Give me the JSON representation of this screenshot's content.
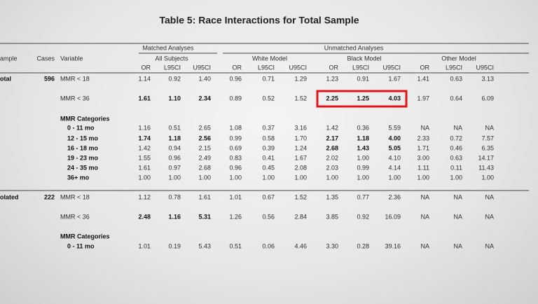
{
  "title": "Table 5: Race Interactions for Total Sample",
  "table": {
    "group_headers": [
      "Matched Analyses",
      "Unmatched Analyses"
    ],
    "columns": {
      "sample": "ample",
      "cases": "Cases",
      "variable": "Variable"
    },
    "models": [
      "All Subjects",
      "White Model",
      "Black Model",
      "Other Model"
    ],
    "stats": [
      "OR",
      "L95CI",
      "U95CI"
    ],
    "rows": [
      {
        "sample": "otal",
        "cases": "596",
        "variable": "MMR < 18",
        "cells": [
          "1.14",
          "0.92",
          "1.40",
          "0.96",
          "0.71",
          "1.29",
          "1.23",
          "0.91",
          "1.67",
          "1.41",
          "0.63",
          "3.13"
        ],
        "bold": [
          false,
          false,
          false,
          false
        ],
        "highlighted": [
          false,
          false,
          false,
          false
        ]
      },
      {
        "variable": "MMR < 36",
        "cells": [
          "1.61",
          "1.10",
          "2.34",
          "0.89",
          "0.52",
          "1.52",
          "2.25",
          "1.25",
          "4.03",
          "1.97",
          "0.64",
          "6.09"
        ],
        "bold": [
          true,
          false,
          true,
          false
        ],
        "highlighted": [
          false,
          false,
          true,
          false
        ]
      },
      {
        "variable": "MMR Categories"
      },
      {
        "variable": "0 - 11 mo",
        "cells": [
          "1.16",
          "0.51",
          "2.65",
          "1.08",
          "0.37",
          "3.16",
          "1.42",
          "0.36",
          "5.59",
          "NA",
          "NA",
          "NA"
        ],
        "bold": [
          false,
          false,
          false,
          false
        ],
        "highlighted": [
          false,
          false,
          false,
          false
        ]
      },
      {
        "variable": "12 - 15 mo",
        "cells": [
          "1.74",
          "1.18",
          "2.56",
          "0.99",
          "0.58",
          "1.70",
          "2.17",
          "1.18",
          "4.00",
          "2.33",
          "0.72",
          "7.57"
        ],
        "bold": [
          true,
          false,
          true,
          false
        ],
        "highlighted": [
          false,
          false,
          false,
          false
        ]
      },
      {
        "variable": "16 - 18 mo",
        "cells": [
          "1.42",
          "0.94",
          "2.15",
          "0.69",
          "0.39",
          "1.24",
          "2.68",
          "1.43",
          "5.05",
          "1.71",
          "0.46",
          "6.35"
        ],
        "bold": [
          false,
          false,
          true,
          false
        ],
        "highlighted": [
          false,
          false,
          false,
          false
        ]
      },
      {
        "variable": "19 - 23 mo",
        "cells": [
          "1.55",
          "0.96",
          "2.49",
          "0.83",
          "0.41",
          "1.67",
          "2.02",
          "1.00",
          "4.10",
          "3.00",
          "0.63",
          "14.17"
        ],
        "bold": [
          false,
          false,
          false,
          false
        ],
        "highlighted": [
          false,
          false,
          false,
          false
        ]
      },
      {
        "variable": "24 - 35 mo",
        "cells": [
          "1.61",
          "0.97",
          "2.68",
          "0.96",
          "0.45",
          "2.08",
          "2.03",
          "0.99",
          "4.14",
          "1.11",
          "0.11",
          "11.43"
        ],
        "bold": [
          false,
          false,
          false,
          false
        ],
        "highlighted": [
          false,
          false,
          false,
          false
        ]
      },
      {
        "variable": "36+ mo",
        "cells": [
          "1.00",
          "1.00",
          "1.00",
          "1.00",
          "1.00",
          "1.00",
          "1.00",
          "1.00",
          "1.00",
          "1.00",
          "1.00",
          "1.00"
        ],
        "bold": [
          false,
          false,
          false,
          false
        ],
        "highlighted": [
          false,
          false,
          false,
          false
        ]
      },
      {
        "sample": "olated",
        "cases": "222",
        "variable": "MMR < 18",
        "cells": [
          "1.12",
          "0.78",
          "1.61",
          "1.01",
          "0.67",
          "1.52",
          "1.35",
          "0.77",
          "2.36",
          "NA",
          "NA",
          "NA"
        ],
        "bold": [
          false,
          false,
          false,
          false
        ],
        "highlighted": [
          false,
          false,
          false,
          false
        ]
      },
      {
        "variable": "MMR < 36",
        "cells": [
          "2.48",
          "1.16",
          "5.31",
          "1.26",
          "0.56",
          "2.84",
          "3.85",
          "0.92",
          "16.09",
          "NA",
          "NA",
          "NA"
        ],
        "bold": [
          true,
          false,
          false,
          false
        ],
        "highlighted": [
          false,
          false,
          false,
          false
        ]
      },
      {
        "variable": "MMR Categories"
      },
      {
        "variable": "0 - 11 mo",
        "cells": [
          "1.01",
          "0.19",
          "5.43",
          "0.51",
          "0.06",
          "4.46",
          "3.30",
          "0.28",
          "39.16",
          "NA",
          "NA",
          "NA"
        ],
        "bold": [
          false,
          false,
          false,
          false
        ],
        "highlighted": [
          false,
          false,
          false,
          false
        ]
      }
    ]
  }
}
